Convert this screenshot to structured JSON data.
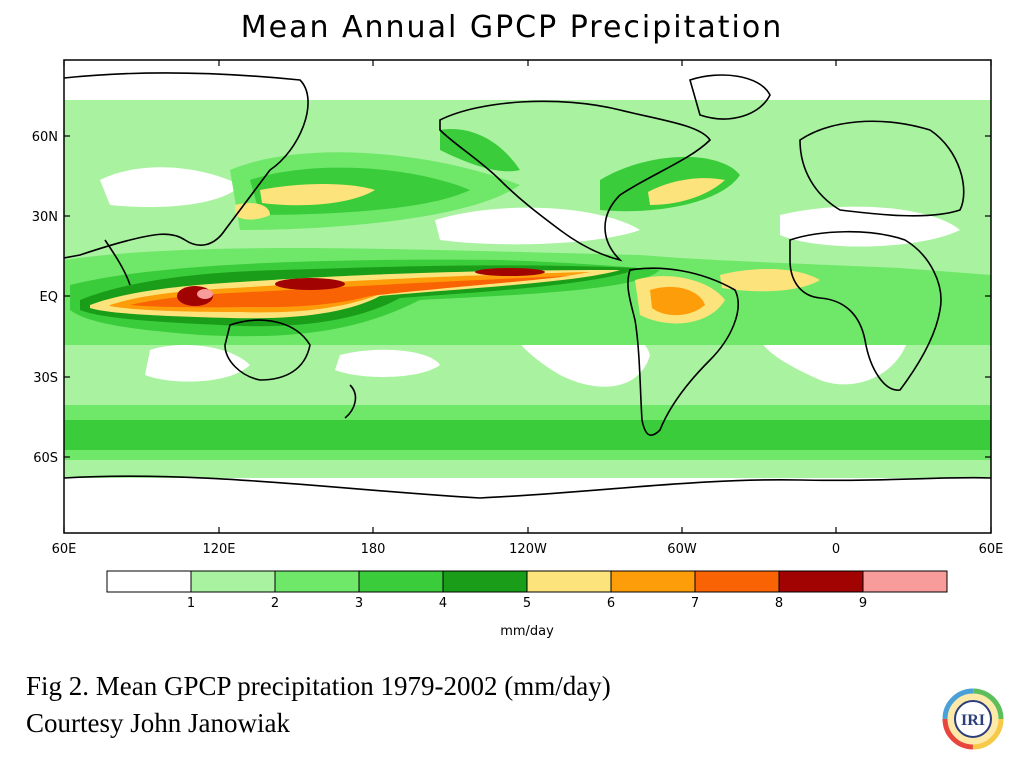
{
  "title": "Mean Annual GPCP Precipitation",
  "map": {
    "lat_ticks": [
      "60N",
      "30N",
      "EQ",
      "30S",
      "60S"
    ],
    "lon_ticks": [
      "60E",
      "120E",
      "180",
      "120W",
      "60W",
      "0",
      "60E"
    ]
  },
  "colorbar": {
    "colors": [
      "#ffffff",
      "#a9f2a0",
      "#6fe86a",
      "#3bcc3b",
      "#1a9e1a",
      "#fde37b",
      "#fe9d0a",
      "#fa6304",
      "#a10303",
      "#f79b9b"
    ],
    "tick_labels": [
      "1",
      "2",
      "3",
      "4",
      "5",
      "6",
      "7",
      "8",
      "9"
    ],
    "units": "mm/day"
  },
  "caption": {
    "line1": "Fig 2.  Mean GPCP precipitation 1979-2002 (mm/day)",
    "line2": "Courtesy John Janowiak"
  },
  "logo": {
    "text": "IRI",
    "ring_colors": [
      "#f7c948",
      "#e8453c",
      "#4aa0d8",
      "#5cbf5c"
    ]
  }
}
